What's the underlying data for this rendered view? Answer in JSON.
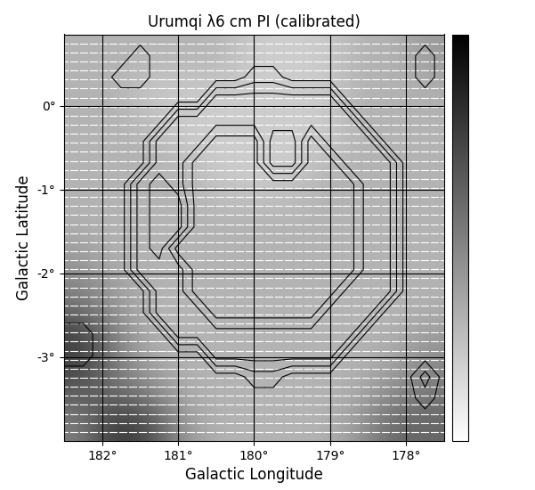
{
  "chart_data": {
    "type": "image_contour",
    "title": "Urumqi λ6 cm PI (calibrated)",
    "x_label": "Galactic Longitude",
    "y_label": "Galactic Latitude",
    "xlim": [
      182.5,
      177.5
    ],
    "ylim": [
      -4.0,
      0.85
    ],
    "xticks": [
      {
        "value": 182,
        "label": "182°"
      },
      {
        "value": 181,
        "label": "181°"
      },
      {
        "value": 180,
        "label": "180°"
      },
      {
        "value": 179,
        "label": "179°"
      },
      {
        "value": 178,
        "label": "178°"
      }
    ],
    "yticks": [
      {
        "value": 0,
        "label": "0°"
      },
      {
        "value": -1,
        "label": "-1°"
      },
      {
        "value": -2,
        "label": "-2°"
      },
      {
        "value": -3,
        "label": "-3°"
      }
    ],
    "grid": true,
    "colorbar_lim": [
      0,
      10
    ],
    "background_cells": [
      [
        3,
        3,
        3,
        3,
        3,
        2,
        2,
        2,
        3,
        3,
        4
      ],
      [
        3,
        3,
        2,
        2,
        2,
        2,
        2,
        2,
        3,
        3,
        3
      ],
      [
        3,
        3,
        3,
        2,
        2,
        2,
        2,
        2,
        3,
        3,
        3
      ],
      [
        3,
        3,
        3,
        3,
        2,
        2,
        2,
        3,
        3,
        3,
        3
      ],
      [
        3,
        3,
        3,
        3,
        3,
        3,
        3,
        3,
        3,
        3,
        3
      ],
      [
        4,
        3,
        3,
        3,
        3,
        3,
        3,
        3,
        3,
        3,
        3
      ],
      [
        5,
        4,
        3,
        3,
        3,
        3,
        3,
        3,
        3,
        3,
        3
      ],
      [
        8,
        5,
        3,
        3,
        3,
        3,
        3,
        3,
        3,
        3,
        4
      ],
      [
        7,
        5,
        4,
        3,
        3,
        3,
        3,
        3,
        3,
        4,
        5
      ],
      [
        5,
        8,
        7,
        4,
        3,
        3,
        3,
        3,
        4,
        6,
        6
      ]
    ],
    "contour_levels": [
      0.5,
      1.5,
      2.5,
      3.5
    ],
    "contour_color": "#000000",
    "contour_cells": [
      [
        0,
        0,
        0,
        0,
        0,
        0,
        0,
        0,
        0,
        0,
        0,
        0,
        0,
        0,
        0,
        0,
        0,
        0,
        0,
        0,
        0
      ],
      [
        0,
        0,
        0,
        0,
        1,
        0,
        0,
        0,
        0,
        0,
        0,
        0,
        0,
        0,
        0,
        0,
        0,
        0,
        0,
        1,
        0
      ],
      [
        0,
        0,
        0,
        1,
        1,
        0,
        0,
        0,
        0,
        0,
        1,
        1,
        0,
        0,
        0,
        0,
        0,
        0,
        0,
        1,
        0
      ],
      [
        0,
        0,
        0,
        0,
        0,
        0,
        0,
        0,
        3,
        3,
        3,
        3,
        3,
        3,
        3,
        0,
        0,
        0,
        0,
        0,
        0
      ],
      [
        0,
        0,
        0,
        0,
        0,
        0,
        3,
        3,
        3,
        3,
        3,
        3,
        3,
        3,
        3,
        3,
        0,
        0,
        0,
        0,
        0
      ],
      [
        0,
        0,
        0,
        0,
        0,
        3,
        3,
        3,
        1,
        1,
        1,
        4,
        4,
        1,
        3,
        3,
        3,
        0,
        0,
        0,
        0
      ],
      [
        0,
        0,
        0,
        0,
        0,
        3,
        3,
        1,
        1,
        1,
        1,
        4,
        4,
        1,
        1,
        3,
        3,
        3,
        0,
        0,
        0
      ],
      [
        0,
        0,
        0,
        0,
        3,
        4,
        3,
        1,
        1,
        1,
        1,
        1,
        1,
        1,
        1,
        1,
        3,
        3,
        0,
        0,
        0
      ],
      [
        0,
        0,
        0,
        0,
        3,
        4,
        4,
        1,
        1,
        1,
        1,
        1,
        1,
        1,
        1,
        1,
        3,
        3,
        0,
        0,
        0
      ],
      [
        0,
        0,
        0,
        0,
        3,
        4,
        4,
        1,
        1,
        1,
        1,
        1,
        1,
        1,
        1,
        1,
        3,
        3,
        0,
        0,
        0
      ],
      [
        0,
        0,
        0,
        0,
        3,
        4,
        1,
        1,
        1,
        1,
        1,
        1,
        1,
        1,
        1,
        1,
        3,
        3,
        0,
        0,
        0
      ],
      [
        0,
        0,
        0,
        0,
        3,
        3,
        3,
        1,
        1,
        1,
        1,
        1,
        1,
        1,
        1,
        1,
        3,
        3,
        0,
        0,
        0
      ],
      [
        0,
        0,
        0,
        0,
        0,
        3,
        3,
        1,
        1,
        1,
        1,
        1,
        1,
        1,
        1,
        3,
        3,
        3,
        0,
        0,
        0
      ],
      [
        0,
        0,
        0,
        0,
        0,
        3,
        3,
        3,
        1,
        1,
        1,
        1,
        1,
        1,
        3,
        3,
        3,
        0,
        0,
        0,
        0
      ],
      [
        1,
        1,
        0,
        0,
        0,
        0,
        3,
        3,
        3,
        3,
        3,
        3,
        3,
        3,
        3,
        3,
        0,
        0,
        0,
        0,
        0
      ],
      [
        1,
        1,
        0,
        0,
        0,
        0,
        0,
        0,
        3,
        3,
        3,
        3,
        3,
        3,
        3,
        0,
        0,
        0,
        0,
        0,
        0
      ],
      [
        0,
        0,
        0,
        0,
        0,
        0,
        0,
        0,
        0,
        0,
        1,
        1,
        0,
        0,
        0,
        0,
        0,
        0,
        0,
        2,
        0
      ],
      [
        0,
        0,
        0,
        0,
        0,
        0,
        0,
        0,
        0,
        0,
        0,
        0,
        0,
        0,
        0,
        0,
        0,
        0,
        0,
        1,
        0
      ],
      [
        0,
        0,
        0,
        0,
        0,
        0,
        0,
        0,
        0,
        0,
        0,
        0,
        0,
        0,
        0,
        0,
        0,
        0,
        0,
        0,
        0
      ],
      [
        0,
        0,
        0,
        0,
        0,
        0,
        0,
        0,
        0,
        0,
        0,
        0,
        0,
        0,
        0,
        0,
        0,
        0,
        0,
        0,
        0
      ]
    ],
    "vector_angle": 0,
    "vector_color": "#ffffff"
  }
}
